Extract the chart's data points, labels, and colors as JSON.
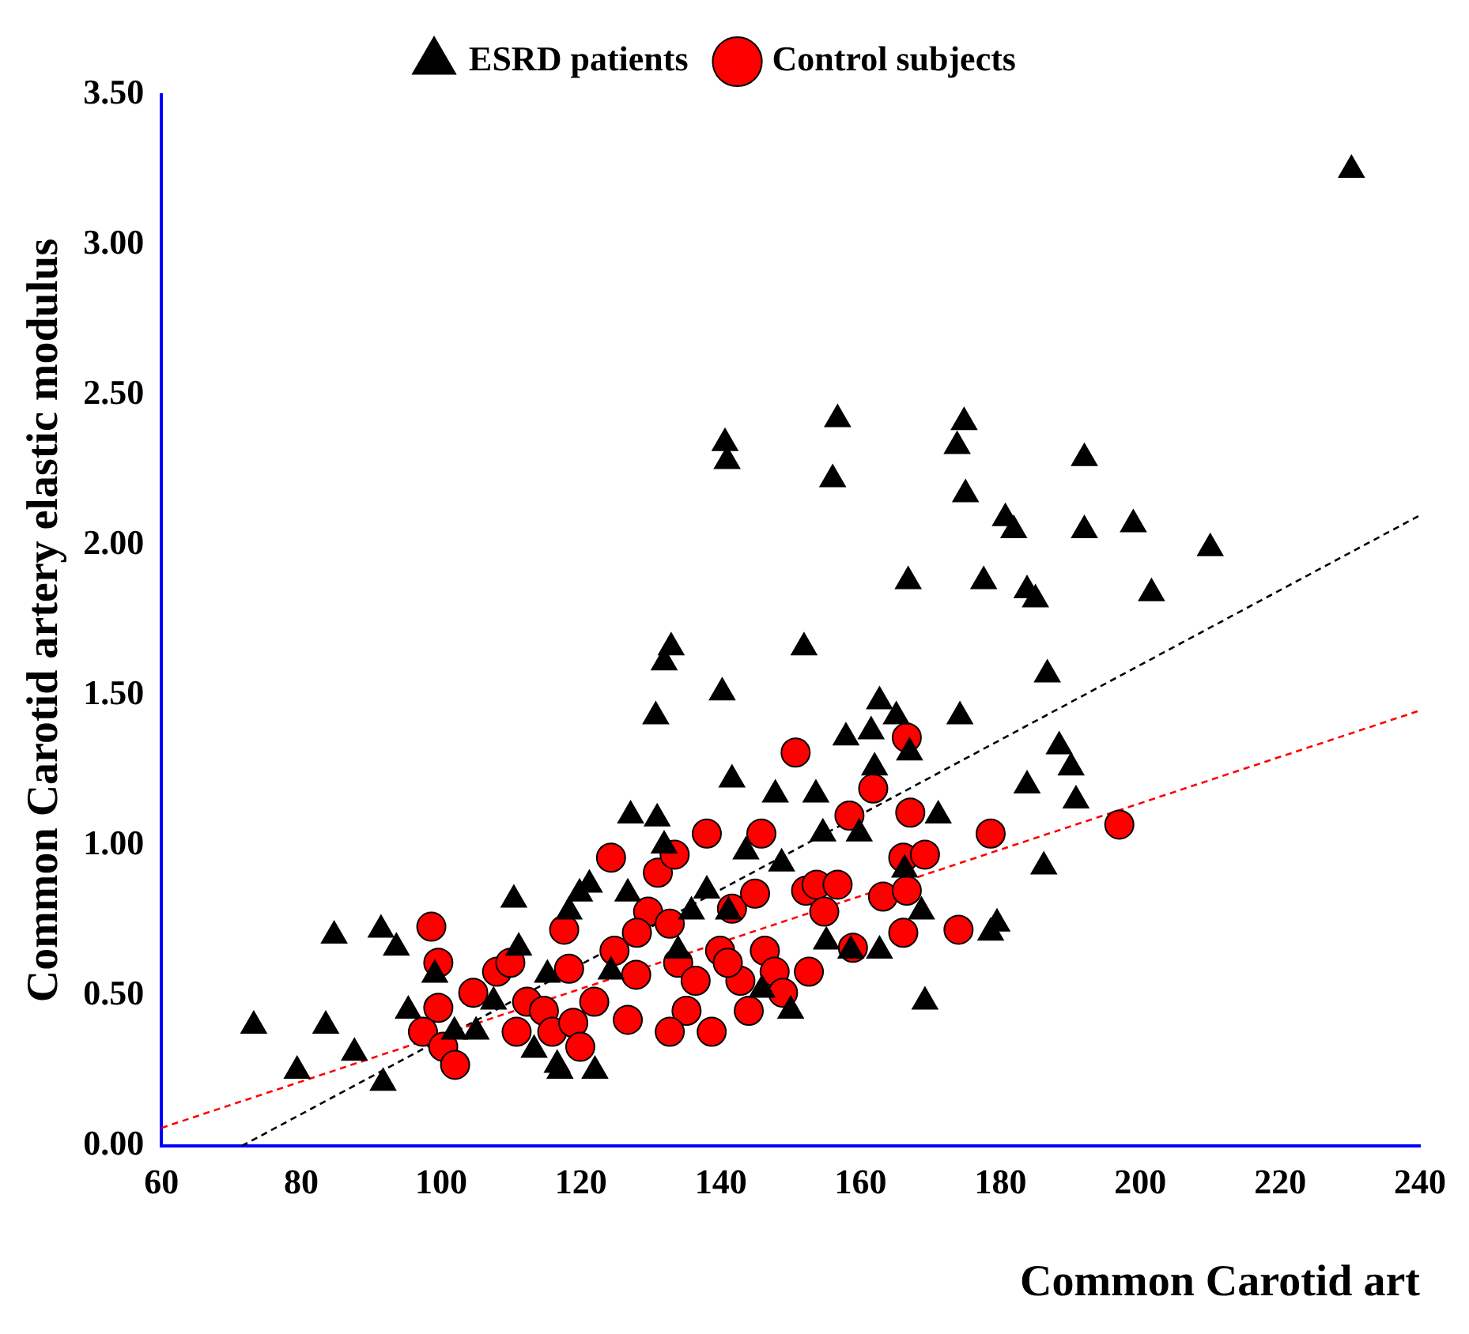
{
  "chart_data": {
    "type": "scatter",
    "xlabel": "Common Carotid art",
    "ylabel": "Common Carotid artery elastic modulus",
    "legend": "top",
    "grid": false,
    "xlim": [
      60,
      240
    ],
    "xticks": [
      60,
      80,
      100,
      120,
      140,
      160,
      180,
      200,
      220,
      240
    ],
    "ylim": [
      0,
      3.5
    ],
    "yticks": [
      {
        "value": 0,
        "label": "0.00"
      },
      {
        "value": 0.5,
        "label": "0.50"
      },
      {
        "value": 1,
        "label": "1.00"
      },
      {
        "value": 1.5,
        "label": "1.50"
      },
      {
        "value": 2,
        "label": "2.00"
      },
      {
        "value": 2.5,
        "label": "2.50"
      },
      {
        "value": 3,
        "label": "3.00"
      },
      {
        "value": 3.5,
        "label": "3.50"
      }
    ],
    "series": [
      {
        "name": "Control subjects",
        "color": "#ff0000",
        "marker": "circle",
        "x": [
          98.6,
          99.6,
          99.6,
          97.4,
          100.3,
          102,
          104.6,
          108,
          109.9,
          110.8,
          112.3,
          114.7,
          115.9,
          117.6,
          118.3,
          118.9,
          119.9,
          121.9,
          124.3,
          124.8,
          126.7,
          127.9,
          129.6,
          131,
          132.7,
          133.4,
          133.9,
          135.1,
          132.7,
          136.4,
          138,
          138.7,
          139.9,
          141.6,
          142.8,
          144,
          144.9,
          145.8,
          146.3,
          147.7,
          148.9,
          150.7,
          152.2,
          152.6,
          153.7,
          154.8,
          156.7,
          158.4,
          158.9,
          161.8,
          163.2,
          166.1,
          166.6,
          166.6,
          167.1,
          166.1,
          169.2,
          174,
          178.6,
          197,
          128,
          141
        ],
        "values": [
          0.73,
          0.61,
          0.46,
          0.38,
          0.33,
          0.27,
          0.51,
          0.58,
          0.61,
          0.38,
          0.48,
          0.45,
          0.38,
          0.72,
          0.59,
          0.41,
          0.33,
          0.48,
          0.96,
          0.65,
          0.42,
          0.57,
          0.78,
          0.91,
          0.74,
          0.97,
          0.61,
          0.45,
          0.38,
          0.55,
          1.04,
          0.38,
          0.65,
          0.79,
          0.55,
          0.45,
          0.84,
          1.04,
          0.65,
          0.58,
          0.51,
          1.31,
          0.85,
          0.58,
          0.87,
          0.78,
          0.87,
          1.1,
          0.66,
          1.19,
          0.83,
          0.96,
          0.85,
          1.36,
          1.11,
          0.71,
          0.97,
          0.72,
          1.04,
          1.07,
          0.71,
          0.61
        ]
      },
      {
        "name": "ESRD patients",
        "color": "#000000",
        "marker": "triangle",
        "x": [
          73.2,
          79.4,
          83.5,
          84.7,
          87.6,
          91.4,
          91.7,
          93.6,
          95.3,
          99.1,
          101.9,
          110.4,
          111.1,
          113.3,
          115.2,
          116.6,
          118.3,
          119.8,
          121.2,
          126.7,
          127.1,
          130.9,
          130.7,
          131.9,
          132.9,
          131.9,
          135.8,
          138,
          140.2,
          140.6,
          140.9,
          141.6,
          141.1,
          143.6,
          147.8,
          148.7,
          150,
          151.9,
          153.6,
          154.6,
          155.1,
          156,
          156.7,
          157.9,
          158.6,
          159.8,
          161.5,
          162,
          162.7,
          165.1,
          166.3,
          167,
          166.8,
          168.7,
          169.2,
          171.1,
          174.2,
          173.8,
          174.8,
          175,
          177.6,
          178.6,
          179.5,
          180.7,
          181.9,
          183.8,
          183.8,
          185,
          186.7,
          186.2,
          188.4,
          190.1,
          190.8,
          192,
          192,
          199,
          201.6,
          210,
          230.2,
          105,
          107.5,
          124.3,
          133.9,
          145.9,
          122,
          117,
          162.7
        ],
        "values": [
          0.4,
          0.25,
          0.4,
          0.7,
          0.31,
          0.72,
          0.21,
          0.66,
          0.45,
          0.57,
          0.38,
          0.82,
          0.66,
          0.32,
          0.57,
          0.27,
          0.78,
          0.84,
          0.87,
          0.84,
          1.1,
          1.09,
          1.43,
          1.61,
          1.66,
          1,
          0.78,
          0.85,
          1.51,
          2.34,
          2.28,
          1.22,
          0.78,
          0.98,
          1.17,
          0.94,
          0.45,
          1.66,
          1.17,
          1.04,
          0.68,
          2.22,
          2.42,
          1.36,
          0.65,
          1.04,
          1.38,
          1.26,
          1.48,
          1.43,
          0.92,
          1.31,
          1.88,
          0.78,
          0.48,
          1.1,
          1.43,
          2.33,
          2.41,
          2.17,
          1.88,
          0.71,
          0.74,
          2.09,
          2.05,
          1.2,
          1.85,
          1.82,
          1.57,
          0.93,
          1.33,
          1.26,
          1.15,
          2.29,
          2.05,
          2.07,
          1.84,
          1.99,
          3.25,
          0.38,
          0.48,
          0.58,
          0.65,
          0.52,
          0.25,
          0.25,
          0.65
        ]
      },
      {
        "type": "line",
        "color": "#ff0000",
        "marker": "none",
        "line_style": "dashed",
        "x": [
          60,
          240
        ],
        "values": [
          0.06,
          1.45
        ]
      },
      {
        "type": "line",
        "color": "#000000",
        "marker": "none",
        "line_style": "dashed",
        "x": [
          71.5,
          240
        ],
        "values": [
          0,
          2.1
        ]
      }
    ]
  }
}
